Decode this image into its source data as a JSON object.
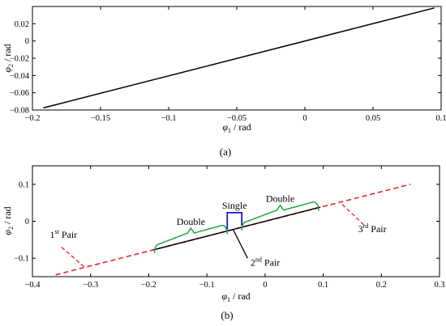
{
  "chart_data": [
    {
      "type": "line",
      "caption": "(a)",
      "xlabel": {
        "symbol": "φ",
        "sub": "1",
        "unit": " / rad"
      },
      "ylabel": {
        "symbol": "φ",
        "sub": "2",
        "unit": " / rad"
      },
      "xlim": [
        -0.2,
        0.1
      ],
      "ylim": [
        -0.08,
        0.04
      ],
      "xticks": [
        -0.2,
        -0.15,
        -0.1,
        -0.05,
        0,
        0.05,
        0.1
      ],
      "xtick_labels": [
        "−0.2",
        "−0.15",
        "−0.1",
        "−0.05",
        "0",
        "0.05",
        "0.1"
      ],
      "yticks": [
        -0.08,
        -0.06,
        -0.04,
        -0.02,
        0,
        0.02
      ],
      "ytick_labels": [
        "−0.08",
        "−0.06",
        "−0.04",
        "−0.02",
        "0",
        "0.02"
      ],
      "grid": false,
      "series": [
        {
          "color": "#000000",
          "style": "solid",
          "x": [
            -0.192,
            0.095
          ],
          "y": [
            -0.0776,
            0.0383
          ]
        }
      ]
    },
    {
      "type": "line",
      "caption": "(b)",
      "xlabel": {
        "symbol": "φ",
        "sub": "1",
        "unit": " / rad"
      },
      "ylabel": {
        "symbol": "φ",
        "sub": "2",
        "unit": " / rad"
      },
      "xlim": [
        -0.4,
        0.3
      ],
      "ylim": [
        -0.15,
        0.15
      ],
      "xticks": [
        -0.4,
        -0.3,
        -0.2,
        -0.1,
        0,
        0.1,
        0.2,
        0.3
      ],
      "xtick_labels": [
        "−0.4",
        "−0.3",
        "−0.2",
        "−0.1",
        "0",
        "0.1",
        "0.2",
        "0.3"
      ],
      "yticks": [
        -0.1,
        0,
        0.1
      ],
      "ytick_labels": [
        "−0.1",
        "0",
        "0.1"
      ],
      "grid": false,
      "series": [
        {
          "color": "#e82020",
          "style": "dashed",
          "x": [
            -0.36,
            0.25
          ],
          "y": [
            -0.145,
            0.1
          ]
        },
        {
          "color": "#000000",
          "style": "solid",
          "x": [
            -0.192,
            0.095
          ],
          "y": [
            -0.0776,
            0.0383
          ]
        }
      ],
      "annotations": {
        "double_left": {
          "text": "Double",
          "x_range": [
            -0.19,
            -0.065
          ],
          "color": "#1aa844"
        },
        "single": {
          "text": "Single",
          "x_range": [
            -0.065,
            -0.04
          ],
          "color": "#1a1acc"
        },
        "double_right": {
          "text": "Double",
          "x_range": [
            -0.04,
            0.092
          ],
          "color": "#1aa844"
        },
        "pair1": {
          "base": "1",
          "sup": "st",
          "rest": " Pair",
          "x": -0.37,
          "y": -0.045
        },
        "pair2": {
          "base": "2",
          "sup": "nd",
          "rest": " Pair",
          "x": -0.025,
          "y": -0.12
        },
        "pair3": {
          "base": "3",
          "sup": "rd",
          "rest": " Pair",
          "x": 0.16,
          "y": -0.03
        }
      }
    }
  ]
}
